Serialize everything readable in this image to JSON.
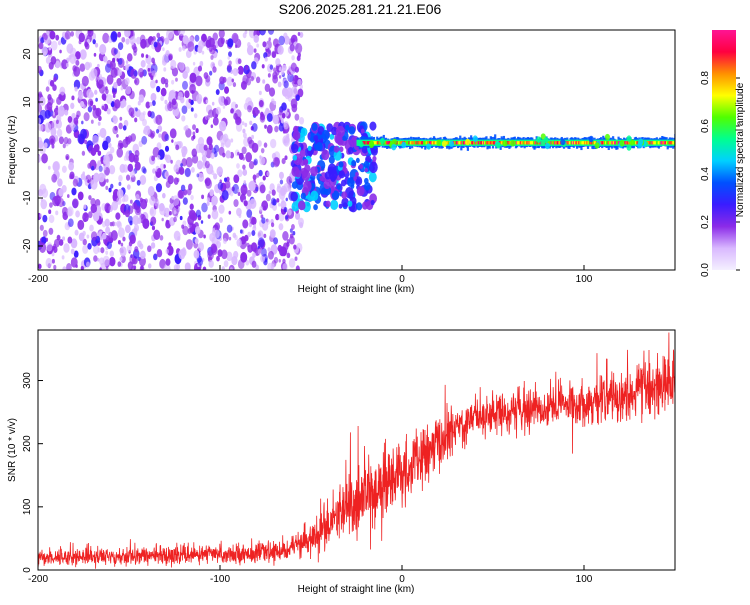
{
  "figure": {
    "title": "S206.2025.281.21.21.E06"
  },
  "chart_data": [
    {
      "type": "heatmap",
      "xlabel": "Height of straight line (km)",
      "ylabel": "Frequency (Hz)",
      "xlim": [
        -200,
        150
      ],
      "ylim": [
        -25,
        25
      ],
      "xticks": [
        -200,
        -100,
        0,
        100
      ],
      "yticks": [
        -20,
        -10,
        0,
        10,
        20
      ],
      "grid": false,
      "colorbar": {
        "label": "Normalized spectral amplitude",
        "range": [
          0,
          1
        ],
        "ticks": [
          0.0,
          0.2,
          0.4,
          0.6,
          0.8
        ],
        "colormap": [
          "#f4f0ff",
          "#d9b8ff",
          "#8b2be8",
          "#3a1cff",
          "#0050ff",
          "#00d0ff",
          "#00ff90",
          "#50ff00",
          "#ffff00",
          "#ff9000",
          "#ff0040",
          "#ff1493"
        ]
      },
      "description_of_structure": [
        {
          "region": "noise",
          "x_range": [
            -200,
            -55
          ],
          "freq_range": [
            -25,
            25
          ],
          "amplitude_range": [
            0.05,
            0.25
          ]
        },
        {
          "region": "transition",
          "x_range": [
            -60,
            -15
          ],
          "freq_range": [
            -12,
            5
          ],
          "amplitude_range": [
            0.15,
            0.45
          ]
        },
        {
          "region": "carrier",
          "x_range": [
            -25,
            150
          ],
          "freq_center": 1.5,
          "amplitude_range": [
            0.6,
            1.0
          ]
        }
      ]
    },
    {
      "type": "line",
      "xlabel": "Height of straight line (km)",
      "ylabel": "SNR (10 * v/v)",
      "xlim": [
        -200,
        150
      ],
      "ylim": [
        0,
        380
      ],
      "xticks": [
        -200,
        -100,
        0,
        100
      ],
      "yticks": [
        0,
        100,
        200,
        300
      ],
      "grid": false,
      "series": [
        {
          "color": "#ee2222",
          "trend_x": [
            -200,
            -150,
            -100,
            -70,
            -55,
            -40,
            -25,
            -10,
            0,
            10,
            20,
            30,
            40,
            60,
            80,
            100,
            120,
            140,
            150
          ],
          "trend_y": [
            20,
            22,
            25,
            28,
            40,
            70,
            110,
            130,
            150,
            175,
            200,
            225,
            245,
            250,
            258,
            265,
            275,
            290,
            295
          ],
          "noise_x": [
            -200,
            -60,
            -40,
            -20,
            0,
            20,
            40,
            100,
            150
          ],
          "noise_amp": [
            12,
            14,
            35,
            60,
            45,
            40,
            28,
            30,
            45
          ]
        }
      ]
    }
  ]
}
